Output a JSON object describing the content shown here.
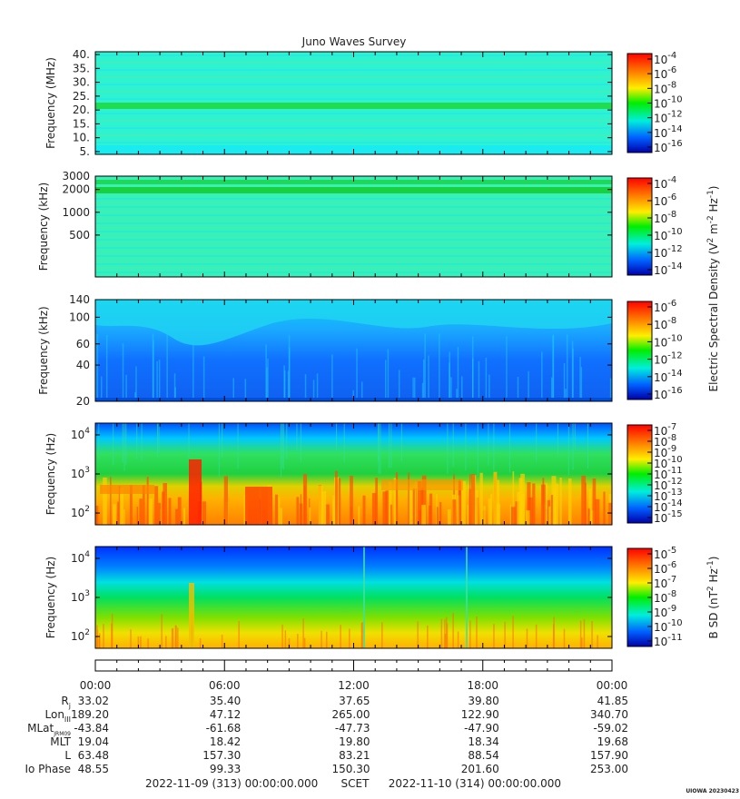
{
  "title": "Juno Waves Survey",
  "watermark": "UIOWA 20230423",
  "chart_data": [
    {
      "type": "heatmap",
      "name": "panel-1",
      "ylabel": "Frequency (MHz)",
      "ylim": [
        4,
        41
      ],
      "yticks": [
        {
          "v": 5,
          "t": "5."
        },
        {
          "v": 10,
          "t": "10."
        },
        {
          "v": 15,
          "t": "15."
        },
        {
          "v": 20,
          "t": "20."
        },
        {
          "v": 25,
          "t": "25."
        },
        {
          "v": 30,
          "t": "30."
        },
        {
          "v": 35,
          "t": "35."
        },
        {
          "v": 40,
          "t": "40."
        }
      ],
      "colorbar": {
        "exponents": [
          "-4",
          "-6",
          "-8",
          "-10",
          "-12",
          "-14",
          "-16"
        ]
      },
      "base_color": "#2ef2d0"
    },
    {
      "type": "heatmap",
      "name": "panel-2",
      "ylabel": "Frequency (kHz)",
      "ylim": [
        140,
        3000
      ],
      "log": true,
      "yticks": [
        {
          "v": 3000,
          "t": "3000"
        },
        {
          "v": 2000,
          "t": "2000"
        },
        {
          "v": 1000,
          "t": "1000"
        },
        {
          "v": 500,
          "t": "500"
        }
      ],
      "colorbar": {
        "exponents": [
          "-4",
          "-6",
          "-8",
          "-10",
          "-12",
          "-14"
        ]
      },
      "base_color": "#38f0b8"
    },
    {
      "type": "heatmap",
      "name": "panel-3",
      "ylabel": "Frequency (kHz)",
      "ylim": [
        20,
        140
      ],
      "log": true,
      "yticks": [
        {
          "v": 140,
          "t": "140"
        },
        {
          "v": 100,
          "t": "100"
        },
        {
          "v": 60,
          "t": "60"
        },
        {
          "v": 40,
          "t": "40"
        },
        {
          "v": 20,
          "t": "20"
        }
      ],
      "colorbar": {
        "exponents": [
          "-6",
          "-8",
          "-10",
          "-12",
          "-14",
          "-16"
        ]
      },
      "base_color": "#1e90ff"
    },
    {
      "type": "heatmap",
      "name": "panel-4",
      "ylabel": "Frequency (Hz)",
      "ylim": [
        50,
        20000
      ],
      "log": true,
      "yticks": [
        {
          "v": 10000,
          "b": "10",
          "e": "4"
        },
        {
          "v": 1000,
          "b": "10",
          "e": "3"
        },
        {
          "v": 100,
          "b": "10",
          "e": "2"
        }
      ],
      "colorbar": {
        "exponents": [
          "-7",
          "-8",
          "-9",
          "-10",
          "-11",
          "-12",
          "-13",
          "-14",
          "-15"
        ]
      },
      "base_color": "#f0d000"
    },
    {
      "type": "heatmap",
      "name": "panel-5",
      "ylabel": "Frequency (Hz)",
      "ylim": [
        50,
        20000
      ],
      "log": true,
      "yticks": [
        {
          "v": 10000,
          "b": "10",
          "e": "4"
        },
        {
          "v": 1000,
          "b": "10",
          "e": "3"
        },
        {
          "v": 100,
          "b": "10",
          "e": "2"
        }
      ],
      "colorbar": {
        "exponents": [
          "-5",
          "-6",
          "-7",
          "-8",
          "-9",
          "-10",
          "-11"
        ]
      },
      "base_color": "#00e070"
    }
  ],
  "colorbar_labels": {
    "electric": {
      "pre": "Electric Spectral Density (V",
      "e1": "2",
      "mid": " m",
      "e2": "-2",
      "mid2": " Hz",
      "e3": "-1",
      "post": ")"
    },
    "magnetic": {
      "pre": "B SD (nT",
      "e1": "2",
      "mid": " Hz",
      "e2": "-1",
      "post": ")"
    }
  },
  "time_axis": {
    "ticks": [
      "00:00",
      "06:00",
      "12:00",
      "18:00",
      "00:00"
    ]
  },
  "ephemeris": {
    "rows": [
      {
        "label": "R",
        "sub": "j",
        "values": [
          "33.02",
          "35.40",
          "37.65",
          "39.80",
          "41.85"
        ]
      },
      {
        "label": "Lon",
        "sub": "III",
        "values": [
          "189.20",
          "47.12",
          "265.00",
          "122.90",
          "340.70"
        ]
      },
      {
        "label": "MLat",
        "sub": "JRM09",
        "values": [
          "-43.84",
          "-61.68",
          "-47.73",
          "-47.90",
          "-59.02"
        ]
      },
      {
        "label": "MLT",
        "sub": "",
        "values": [
          "19.04",
          "18.42",
          "19.80",
          "18.34",
          "19.68"
        ]
      },
      {
        "label": "L",
        "sub": "",
        "values": [
          "63.48",
          "157.30",
          "83.21",
          "88.54",
          "157.90"
        ]
      },
      {
        "label": "Io Phase",
        "sub": "",
        "values": [
          "48.55",
          "99.33",
          "150.30",
          "201.60",
          "253.00"
        ]
      }
    ]
  },
  "footer": {
    "start": "2022-11-09 (313) 00:00:00.000",
    "scet": "SCET",
    "end": "2022-11-10 (314) 00:00:00.000"
  }
}
